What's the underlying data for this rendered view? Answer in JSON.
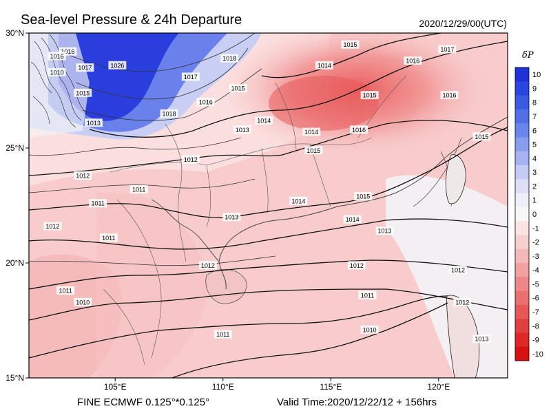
{
  "header": {
    "title": "Sea-level Pressure & 24h Departure",
    "timestamp": "2020/12/29/00(UTC)"
  },
  "footer": {
    "model": "FINE ECMWF 0.125°*0.125°",
    "valid_time": "Valid Time:2020/12/22/12 + 156hrs"
  },
  "axes": {
    "lat_labels": [
      "30°N",
      "25°N",
      "20°N",
      "15°N"
    ],
    "lon_labels": [
      "105°E",
      "110°E",
      "115°E",
      "120°E"
    ],
    "lat_range": [
      15,
      30
    ],
    "lon_range": [
      101,
      123.2
    ]
  },
  "colorbar": {
    "title": "δP",
    "ticks": [
      "10",
      "9",
      "8",
      "7",
      "6",
      "5",
      "4",
      "3",
      "2",
      "1",
      "0",
      "-1",
      "-2",
      "-3",
      "-4",
      "-5",
      "-6",
      "-7",
      "-8",
      "-9",
      "-10"
    ],
    "colors": [
      "#1e32d8",
      "#2a46e0",
      "#3a5ae4",
      "#5070e8",
      "#6a86ec",
      "#8a9cef",
      "#a6b3f2",
      "#c4cbf5",
      "#dcdff8",
      "#eeeffa",
      "#f7f7f7",
      "#fbe3e3",
      "#f8cfcf",
      "#f5b8b8",
      "#f2a0a0",
      "#ee8888",
      "#ea7070",
      "#e65858",
      "#e24040",
      "#de2828",
      "#d81010"
    ]
  },
  "isobars": [
    {
      "label": "1026",
      "x": 105.1,
      "y": 28.6
    },
    {
      "label": "1018",
      "x": 107.5,
      "y": 26.5
    },
    {
      "label": "1017",
      "x": 108.5,
      "y": 28.1
    },
    {
      "label": "1016",
      "x": 109.2,
      "y": 27.0
    },
    {
      "label": "1015",
      "x": 110.7,
      "y": 27.6
    },
    {
      "label": "1014",
      "x": 111.9,
      "y": 26.2
    },
    {
      "label": "1013",
      "x": 110.9,
      "y": 25.8
    },
    {
      "label": "1014",
      "x": 114.7,
      "y": 28.6
    },
    {
      "label": "1014",
      "x": 114.1,
      "y": 25.7
    },
    {
      "label": "1015",
      "x": 115.9,
      "y": 29.5
    },
    {
      "label": "1015",
      "x": 116.8,
      "y": 27.3
    },
    {
      "label": "1016",
      "x": 116.3,
      "y": 25.8
    },
    {
      "label": "1016",
      "x": 118.8,
      "y": 28.8
    },
    {
      "label": "1017",
      "x": 120.4,
      "y": 29.3
    },
    {
      "label": "1016",
      "x": 120.5,
      "y": 27.3
    },
    {
      "label": "1015",
      "x": 122.0,
      "y": 25.5
    },
    {
      "label": "1015",
      "x": 114.2,
      "y": 24.9
    },
    {
      "label": "1015",
      "x": 116.5,
      "y": 22.9
    },
    {
      "label": "1014",
      "x": 113.5,
      "y": 22.7
    },
    {
      "label": "1014",
      "x": 116.0,
      "y": 21.9
    },
    {
      "label": "1013",
      "x": 117.5,
      "y": 21.4
    },
    {
      "label": "1013",
      "x": 110.4,
      "y": 22.0
    },
    {
      "label": "1012",
      "x": 108.5,
      "y": 24.5
    },
    {
      "label": "1012",
      "x": 103.5,
      "y": 23.8
    },
    {
      "label": "1011",
      "x": 106.1,
      "y": 23.2
    },
    {
      "label": "1011",
      "x": 104.2,
      "y": 22.6
    },
    {
      "label": "1012",
      "x": 102.1,
      "y": 21.6
    },
    {
      "label": "1011",
      "x": 104.7,
      "y": 21.1
    },
    {
      "label": "1012",
      "x": 109.3,
      "y": 19.9
    },
    {
      "label": "1012",
      "x": 116.2,
      "y": 19.9
    },
    {
      "label": "1011",
      "x": 102.7,
      "y": 18.8
    },
    {
      "label": "1010",
      "x": 103.5,
      "y": 18.3
    },
    {
      "label": "1011",
      "x": 116.7,
      "y": 18.6
    },
    {
      "label": "1011",
      "x": 110.0,
      "y": 16.9
    },
    {
      "label": "1010",
      "x": 116.8,
      "y": 17.1
    },
    {
      "label": "1012",
      "x": 120.9,
      "y": 19.7
    },
    {
      "label": "1012",
      "x": 121.1,
      "y": 18.3
    },
    {
      "label": "1013",
      "x": 122.0,
      "y": 16.7
    },
    {
      "label": "1016",
      "x": 102.8,
      "y": 29.2
    },
    {
      "label": "1017",
      "x": 103.6,
      "y": 28.5
    },
    {
      "label": "1010",
      "x": 102.3,
      "y": 28.3
    },
    {
      "label": "1015",
      "x": 103.5,
      "y": 27.4
    },
    {
      "label": "1013",
      "x": 104.0,
      "y": 26.1
    },
    {
      "label": "1016",
      "x": 102.3,
      "y": 29.0
    },
    {
      "label": "1018",
      "x": 110.3,
      "y": 28.9
    }
  ]
}
